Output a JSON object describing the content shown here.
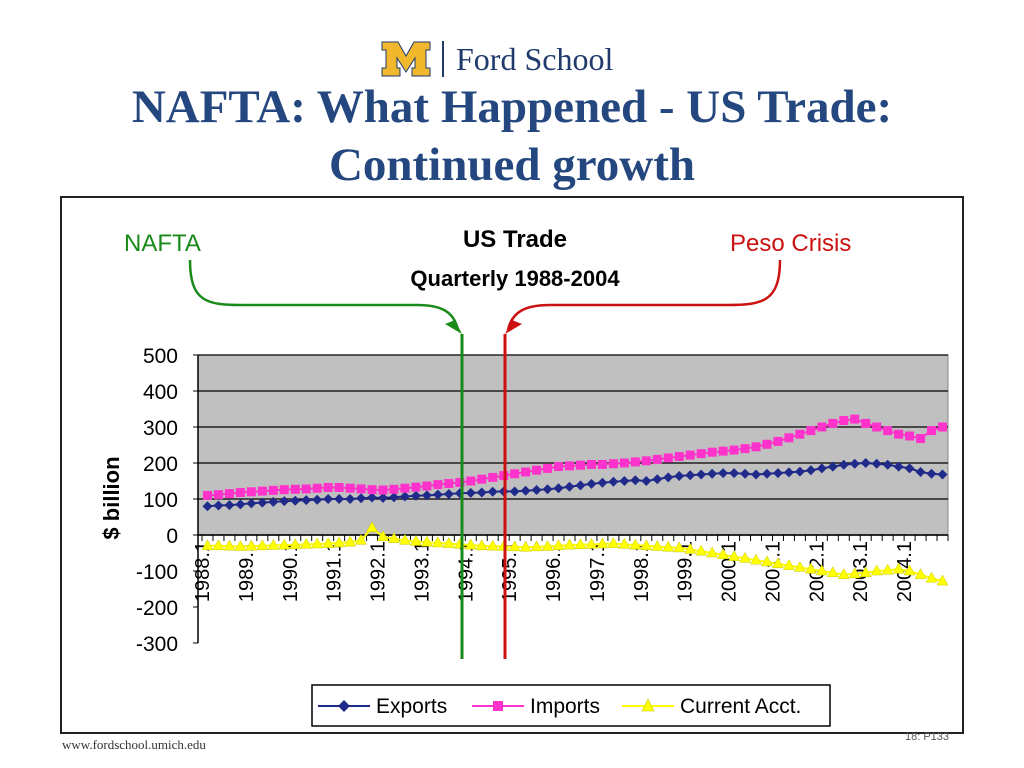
{
  "header": {
    "brand_text": "Ford School",
    "title_line1": "NAFTA: What Happened - US Trade:",
    "title_line2": "Continued growth"
  },
  "annotations": {
    "nafta_label": "NAFTA",
    "peso_label": "Peso Crisis"
  },
  "footer": {
    "url": "www.fordschool.umich.edu",
    "page": "18: P133"
  },
  "colors": {
    "exports": "#1f2a8a",
    "imports": "#ff33cc",
    "current_account": "#ffff00",
    "nafta_arrow": "#1a8a1a",
    "peso_arrow": "#cc1111",
    "plot_bg": "#c0c0c0",
    "title": "#24477f"
  },
  "chart_data": {
    "type": "line",
    "title": "US Trade",
    "subtitle": "Quarterly 1988-2004",
    "ylabel": "$ billion",
    "ylim": [
      -300,
      500
    ],
    "yticks": [
      500,
      400,
      300,
      200,
      100,
      0,
      -100,
      -200,
      -300
    ],
    "grid": true,
    "legend_position": "bottom",
    "x_start_year": 1988,
    "quarters": 68,
    "xtick_labels": [
      "1988.1",
      "1989.1",
      "1990.1",
      "1991.1",
      "1992.1",
      "1993.1",
      "1994.1",
      "1995.1",
      "1996.1",
      "1997.1",
      "1998.1",
      "1999.1",
      "2000.1",
      "2001.1",
      "2002.1",
      "2003.1",
      "2004.1"
    ],
    "series": [
      {
        "name": "Exports",
        "marker": "diamond",
        "values": [
          80,
          82,
          83,
          85,
          88,
          90,
          92,
          94,
          95,
          97,
          98,
          100,
          100,
          100,
          102,
          104,
          103,
          105,
          107,
          109,
          110,
          112,
          114,
          116,
          117,
          118,
          120,
          121,
          121,
          123,
          125,
          127,
          130,
          134,
          138,
          142,
          145,
          148,
          150,
          152,
          150,
          155,
          160,
          164,
          166,
          168,
          170,
          172,
          172,
          170,
          168,
          170,
          172,
          174,
          176,
          180,
          185,
          190,
          195,
          198,
          200,
          198,
          195,
          190,
          185,
          175,
          170,
          168
        ]
      },
      {
        "name": "Imports",
        "marker": "square",
        "values": [
          110,
          112,
          115,
          118,
          120,
          122,
          124,
          126,
          127,
          128,
          130,
          132,
          132,
          130,
          128,
          126,
          125,
          127,
          130,
          133,
          136,
          140,
          143,
          146,
          150,
          155,
          160,
          165,
          170,
          175,
          180,
          185,
          190,
          192,
          194,
          196,
          196,
          198,
          200,
          203,
          206,
          210,
          214,
          218,
          222,
          226,
          230,
          233,
          236,
          240,
          245,
          252,
          260,
          270,
          280,
          290,
          300,
          310,
          318,
          322,
          310,
          300,
          290,
          280,
          275,
          268,
          290,
          300
        ]
      },
      {
        "name": "Current Acct.",
        "marker": "triangle",
        "values": [
          -30,
          -30,
          -31,
          -32,
          -31,
          -30,
          -29,
          -28,
          -27,
          -26,
          -25,
          -24,
          -22,
          -20,
          -15,
          20,
          -5,
          -10,
          -15,
          -18,
          -20,
          -22,
          -24,
          -26,
          -28,
          -30,
          -31,
          -32,
          -33,
          -34,
          -33,
          -32,
          -30,
          -28,
          -27,
          -26,
          -25,
          -24,
          -26,
          -28,
          -30,
          -32,
          -34,
          -36,
          -40,
          -45,
          -50,
          -55,
          -60,
          -65,
          -70,
          -75,
          -80,
          -85,
          -90,
          -95,
          -100,
          -105,
          -110,
          -108,
          -105,
          -100,
          -98,
          -95,
          -100,
          -110,
          -120,
          -128
        ]
      }
    ]
  }
}
